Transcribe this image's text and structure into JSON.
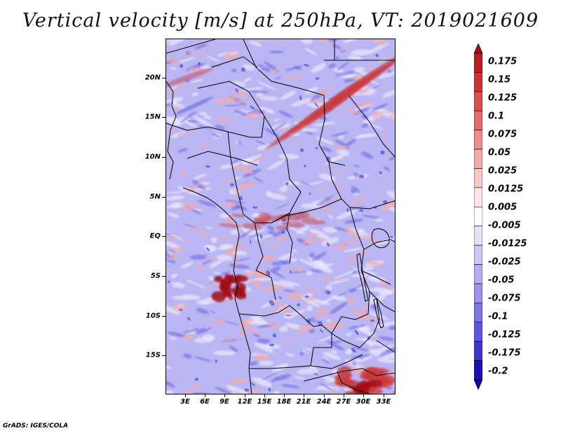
{
  "title": "Vertical velocity [m/s] at 250hPa, VT: 2019021609",
  "credit": "GrADS: IGES/COLA",
  "lat_labels": [
    "20N",
    "15N",
    "10N",
    "5N",
    "EQ",
    "5S",
    "10S",
    "15S"
  ],
  "lon_labels": [
    "3E",
    "6E",
    "9E",
    "12E",
    "15E",
    "18E",
    "21E",
    "24E",
    "27E",
    "30E",
    "33E"
  ],
  "colorbar": {
    "labels": [
      "0.175",
      "0.15",
      "0.125",
      "0.1",
      "0.075",
      "0.05",
      "0.025",
      "0.0125",
      "0.005",
      "-0.005",
      "-0.0125",
      "-0.025",
      "-0.05",
      "-0.075",
      "-0.1",
      "-0.125",
      "-0.175",
      "-0.2"
    ],
    "colors": [
      "#a01018",
      "#b81e22",
      "#cc3434",
      "#dc4e4e",
      "#e66c6c",
      "#ee8c8c",
      "#f4aaaa",
      "#f9c8c8",
      "#fde6e6",
      "#ffffff",
      "#e4e2fb",
      "#cbc8f6",
      "#b3aff2",
      "#9a94ee",
      "#7e76e6",
      "#6058dc",
      "#4034cc",
      "#2010b0",
      "#1a0096"
    ]
  },
  "map_colors": {
    "base": "#b9b6f3",
    "light": "#e8e6fc",
    "pink": "#f4aaaa",
    "red": "#cc3434",
    "darkred": "#a01018",
    "blue": "#6058dc",
    "darkblue": "#4034cc"
  }
}
